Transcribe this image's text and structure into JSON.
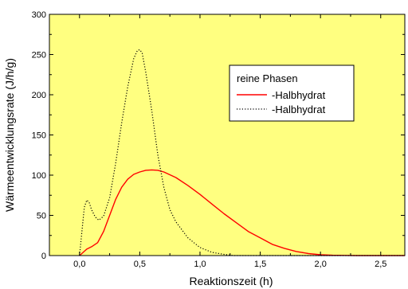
{
  "colors": {
    "background": "#ffff80",
    "axes": "#000000",
    "series_halbhydrat_solid": "#ff0000",
    "series_halbhydrat_dotted": "#000000",
    "legend_background": "#ffffff"
  },
  "chart_data": {
    "type": "line",
    "title": "",
    "xlabel": "Reaktionszeit (h)",
    "ylabel": "Wärmeentwicklungsrate (J/h/g)",
    "xlim": [
      -0.25,
      2.7
    ],
    "ylim": [
      0,
      300
    ],
    "xticks": [
      0.0,
      0.5,
      1.0,
      1.5,
      2.0,
      2.5
    ],
    "xtick_labels": [
      "0,0",
      "0,5",
      "1,0",
      "1,5",
      "2,0",
      "2,5"
    ],
    "yticks": [
      0,
      50,
      100,
      150,
      200,
      250,
      300
    ],
    "ytick_labels": [
      "0",
      "50",
      "100",
      "150",
      "200",
      "250",
      "300"
    ],
    "grid": false,
    "legend": {
      "title": "reine Phasen",
      "placement": "top-right"
    },
    "series": [
      {
        "name": "-Halbhydrat",
        "line_style": "solid",
        "x": [
          0.0,
          0.03,
          0.06,
          0.1,
          0.15,
          0.2,
          0.25,
          0.3,
          0.35,
          0.4,
          0.45,
          0.5,
          0.55,
          0.6,
          0.65,
          0.7,
          0.8,
          0.9,
          1.0,
          1.1,
          1.2,
          1.3,
          1.4,
          1.5,
          1.6,
          1.7,
          1.8,
          1.9,
          2.0,
          2.1,
          2.2,
          2.3,
          2.4,
          2.5,
          2.7
        ],
        "y": [
          0,
          4,
          8,
          11,
          16,
          30,
          50,
          70,
          85,
          95,
          101,
          104,
          106,
          106.5,
          106,
          104,
          97,
          87,
          76,
          64,
          52,
          41,
          30,
          22,
          14,
          9,
          5,
          2.5,
          1,
          0.4,
          0.2,
          0,
          0,
          0,
          0
        ]
      },
      {
        "name": "-Halbhydrat",
        "line_style": "dotted",
        "x": [
          0.0,
          0.02,
          0.04,
          0.06,
          0.08,
          0.1,
          0.13,
          0.16,
          0.2,
          0.25,
          0.3,
          0.35,
          0.4,
          0.45,
          0.48,
          0.5,
          0.52,
          0.55,
          0.6,
          0.65,
          0.7,
          0.75,
          0.8,
          0.9,
          1.0,
          1.1,
          1.2,
          1.28,
          1.4,
          1.6,
          2.0,
          2.7
        ],
        "y": [
          0,
          30,
          60,
          69,
          66,
          57,
          48,
          44,
          49,
          72,
          115,
          165,
          210,
          245,
          255,
          256,
          252,
          228,
          180,
          125,
          85,
          57,
          42,
          22,
          10,
          4,
          1.5,
          0,
          0,
          0,
          0,
          0
        ]
      }
    ]
  }
}
